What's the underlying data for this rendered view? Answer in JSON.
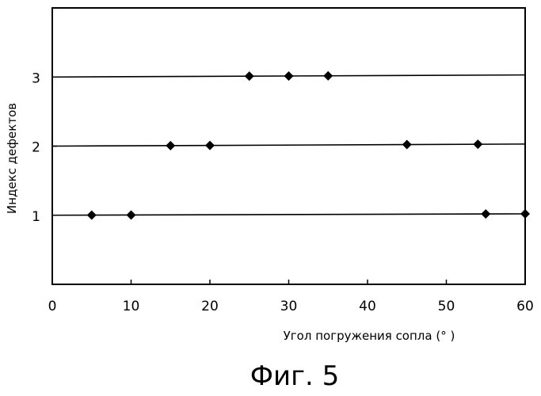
{
  "chart_data": {
    "type": "scatter",
    "title": "",
    "xlabel": "Угол погружения сопла (° )",
    "ylabel": "Индекс дефектов",
    "caption": "Фиг. 5",
    "xlim": [
      0,
      60
    ],
    "ylim": [
      0,
      4
    ],
    "xticks": [
      0,
      10,
      20,
      30,
      40,
      50,
      60
    ],
    "yticks": [
      1,
      2,
      3
    ],
    "grid": false,
    "marker": "diamond",
    "color": "#000000",
    "points": [
      {
        "x": 5,
        "y": 1.0
      },
      {
        "x": 10,
        "y": 1.0
      },
      {
        "x": 15,
        "y": 2.0
      },
      {
        "x": 20,
        "y": 2.0
      },
      {
        "x": 25,
        "y": 3.0
      },
      {
        "x": 30,
        "y": 3.0
      },
      {
        "x": 35,
        "y": 3.0
      },
      {
        "x": 45,
        "y": 2.0
      },
      {
        "x": 54,
        "y": 2.0
      },
      {
        "x": 55,
        "y": 1.0
      },
      {
        "x": 60,
        "y": 1.0
      }
    ],
    "reference_lines": [
      {
        "x": [
          0,
          60
        ],
        "y": [
          1.0,
          1.02
        ]
      },
      {
        "x": [
          0,
          60
        ],
        "y": [
          2.0,
          2.03
        ]
      },
      {
        "x": [
          0,
          60
        ],
        "y": [
          3.0,
          3.03
        ]
      }
    ]
  }
}
